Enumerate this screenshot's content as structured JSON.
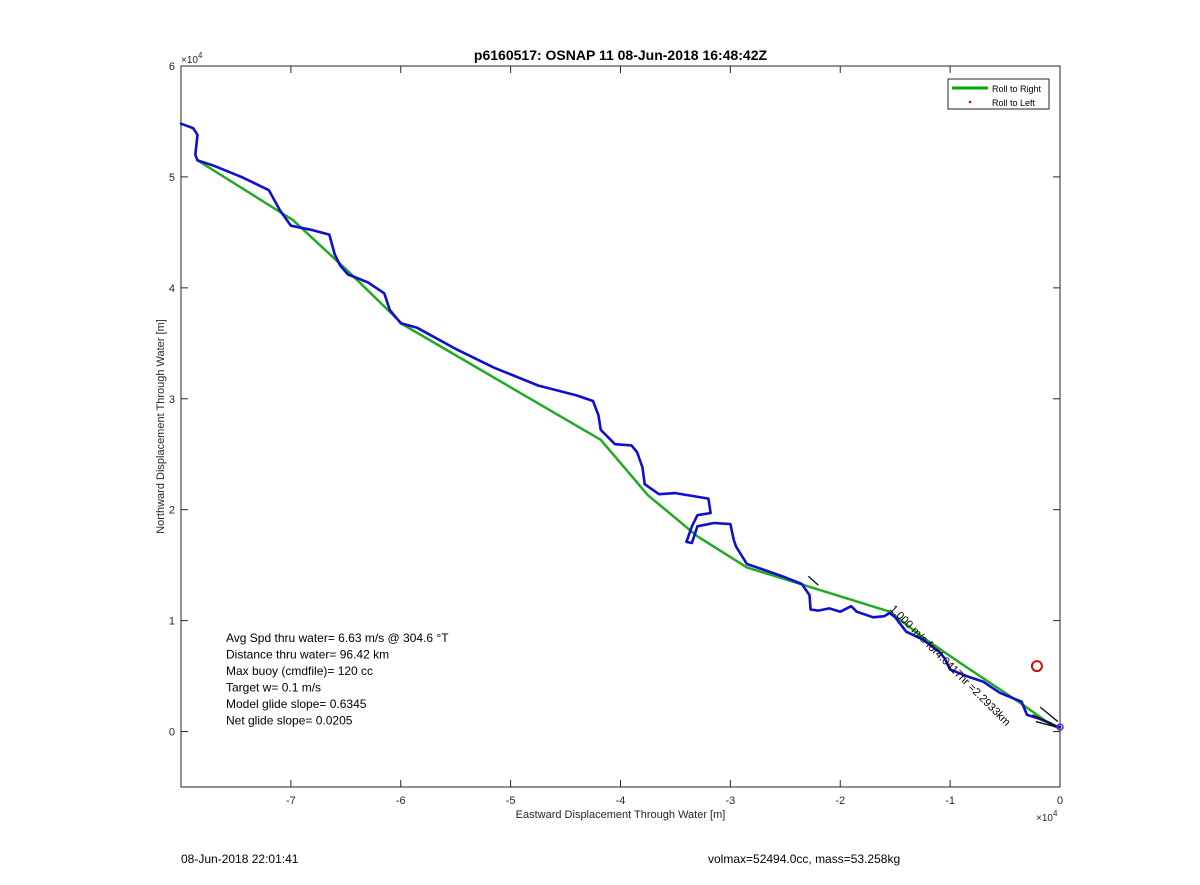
{
  "chart_data": {
    "type": "line",
    "title": "p6160517: OSNAP 11 08-Jun-2018 16:48:42Z",
    "xlabel": "Eastward Displacement Through Water [m]",
    "ylabel": "Northward Displacement Through Water [m]",
    "x_exponent_label": "×10",
    "x_exponent": "4",
    "y_exponent_label": "×10",
    "y_exponent": "4",
    "xlim": [
      -80000,
      0
    ],
    "ylim": [
      -5000,
      60000
    ],
    "xticks": [
      -70000,
      -60000,
      -50000,
      -40000,
      -30000,
      -20000,
      -10000,
      0
    ],
    "xtick_labels": [
      "-7",
      "-6",
      "-5",
      "-4",
      "-3",
      "-2",
      "-1",
      "0"
    ],
    "yticks": [
      0,
      10000,
      20000,
      30000,
      40000,
      50000,
      60000
    ],
    "ytick_labels": [
      "0",
      "1",
      "2",
      "3",
      "4",
      "5",
      "6"
    ],
    "grid": false,
    "legend": {
      "placement": "top-right",
      "entries": [
        {
          "label": "Roll to Right",
          "color": "#00aa00",
          "marker": "line"
        },
        {
          "label": "Roll to Left",
          "color": "#ff0000",
          "marker": "dot"
        }
      ]
    },
    "series": [
      {
        "name": "Roll to Right",
        "color": "#22aa22",
        "x": [
          -78500,
          -69800,
          -64800,
          -59800,
          -41800,
          -37500,
          -33000,
          -28500,
          -15500,
          -12500,
          -8800,
          -3500,
          -800,
          0
        ],
        "y": [
          51500,
          46100,
          41500,
          36700,
          26300,
          21300,
          17600,
          14800,
          10800,
          8500,
          6000,
          2500,
          600,
          300
        ]
      },
      {
        "color": "#1010cc",
        "x": [
          -80000,
          -78900,
          -78500,
          -78700,
          -78500,
          -77000,
          -74500,
          -72000,
          -71000,
          -70000,
          -68000,
          -66500,
          -66000,
          -65500,
          -64800,
          -63000,
          -61500,
          -61000,
          -60000,
          -58500,
          -55000,
          -51500,
          -47500,
          -44000,
          -42500,
          -42000,
          -41800,
          -40500,
          -39000,
          -38500,
          -38000,
          -37800,
          -36500,
          -35000,
          -32000,
          -31800,
          -33000,
          -33500,
          -34000,
          -33500,
          -33000,
          -31500,
          -30000,
          -29700,
          -29500,
          -28500,
          -27000,
          -25000,
          -23500,
          -22800,
          -22700,
          -22000,
          -21000,
          -20000,
          -19000,
          -18500,
          -17000,
          -16000,
          -15500,
          -15000,
          -14000,
          -12500,
          -11000,
          -10500,
          -10000,
          -8500,
          -7000,
          -5500,
          -4000,
          -3500,
          -3000,
          -2000,
          -1000,
          -400,
          0
        ],
        "y": [
          54800,
          54400,
          53800,
          52000,
          51500,
          51000,
          50000,
          48800,
          47000,
          45600,
          45200,
          44800,
          43000,
          42000,
          41200,
          40500,
          39500,
          38000,
          36800,
          36400,
          34500,
          32800,
          31200,
          30300,
          29800,
          28500,
          27200,
          25900,
          25800,
          25200,
          23800,
          22300,
          21400,
          21500,
          21000,
          19700,
          19500,
          18500,
          17100,
          17000,
          18500,
          18800,
          18700,
          17300,
          16700,
          15100,
          14600,
          13900,
          13300,
          12300,
          11000,
          10900,
          11100,
          10800,
          11300,
          10800,
          10300,
          10400,
          10700,
          10300,
          9000,
          8300,
          7200,
          6600,
          5600,
          5000,
          4500,
          3500,
          2900,
          2700,
          1500,
          1200,
          800,
          500,
          400
        ]
      }
    ],
    "annotations": [
      {
        "text": "1.000 m/s for4.0417hr =2.2933km",
        "x": -15000,
        "y": 11000,
        "angle_deg": 45,
        "color": "#000000"
      }
    ],
    "markers": [
      {
        "type": "circle",
        "x": -2100,
        "y": 5900,
        "color": "#cc1111"
      },
      {
        "type": "dot",
        "x": 0,
        "y": 400,
        "color": "#7722cc"
      }
    ],
    "text_box": [
      "Avg Spd thru water=  6.63 m/s @ 304.6 °T",
      "Distance thru water= 96.42 km",
      "Max buoy (cmdfile)= 120 cc",
      "Target w= 0.1 m/s",
      "Model glide slope= 0.6345",
      "Net glide slope= 0.0205"
    ]
  },
  "footer": {
    "left": "08-Jun-2018 22:01:41",
    "right": "volmax=52494.0cc, mass=53.258kg"
  }
}
